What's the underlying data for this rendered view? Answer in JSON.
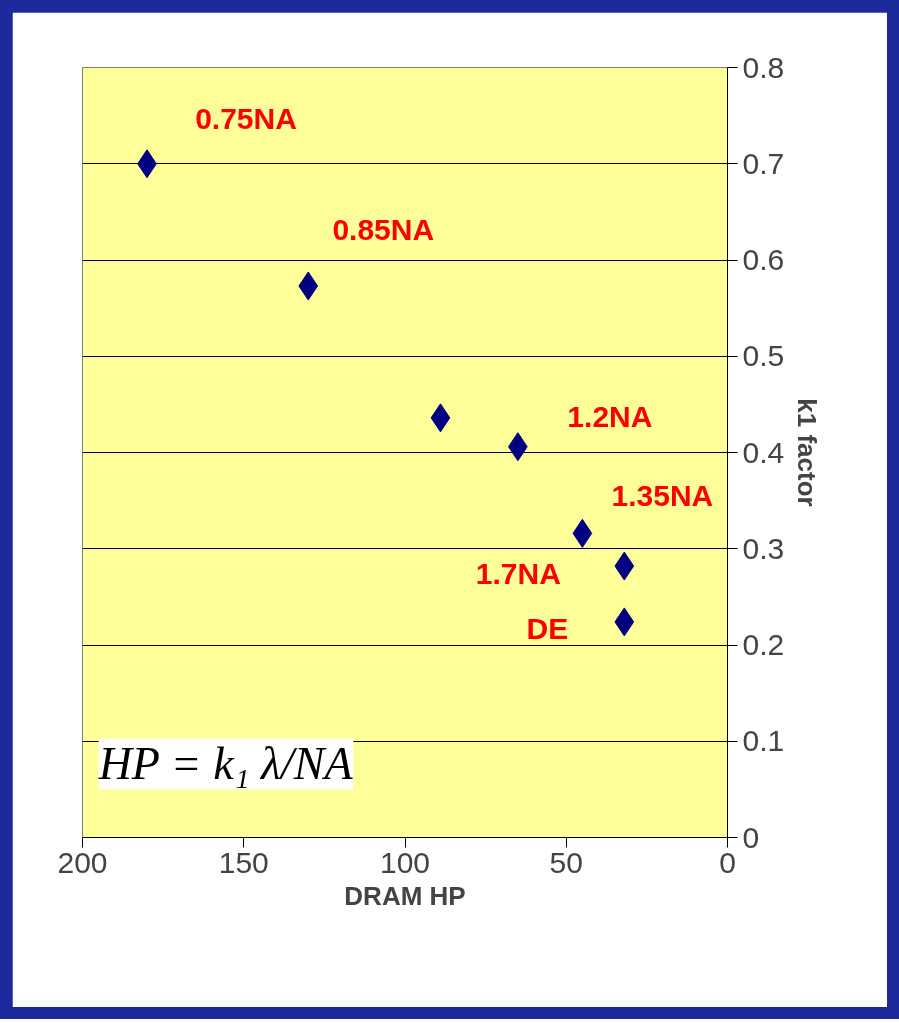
{
  "chart_data": {
    "type": "scatter",
    "xlabel": "DRAM HP",
    "ylabel": "k1 factor",
    "x": [
      180,
      130,
      89,
      65,
      45,
      32,
      32
    ],
    "values": [
      0.7,
      0.573,
      0.436,
      0.406,
      0.316,
      0.282,
      0.224
    ],
    "color": "#000080",
    "marker": "diamond",
    "xlim": [
      200,
      0
    ],
    "xticks": [
      200,
      150,
      100,
      50,
      0
    ],
    "ylim": [
      0,
      0.8
    ],
    "yticks": [
      0,
      0.1,
      0.2,
      0.3,
      0.4,
      0.5,
      0.6,
      0.7,
      0.8
    ],
    "grid": "y",
    "annotations": [
      {
        "text": "0.75NA",
        "x": 180,
        "y": 0.7
      },
      {
        "text": "0.85NA",
        "x": 130,
        "y": 0.573
      },
      {
        "text": "1.2NA",
        "x": 65,
        "y": 0.406
      },
      {
        "text": "1.35NA",
        "x": 45,
        "y": 0.316
      },
      {
        "text": "1.7NA",
        "x": 32,
        "y": 0.282
      },
      {
        "text": "DE",
        "x": 32,
        "y": 0.224
      },
      "HP = k₁ λ/NA"
    ]
  }
}
